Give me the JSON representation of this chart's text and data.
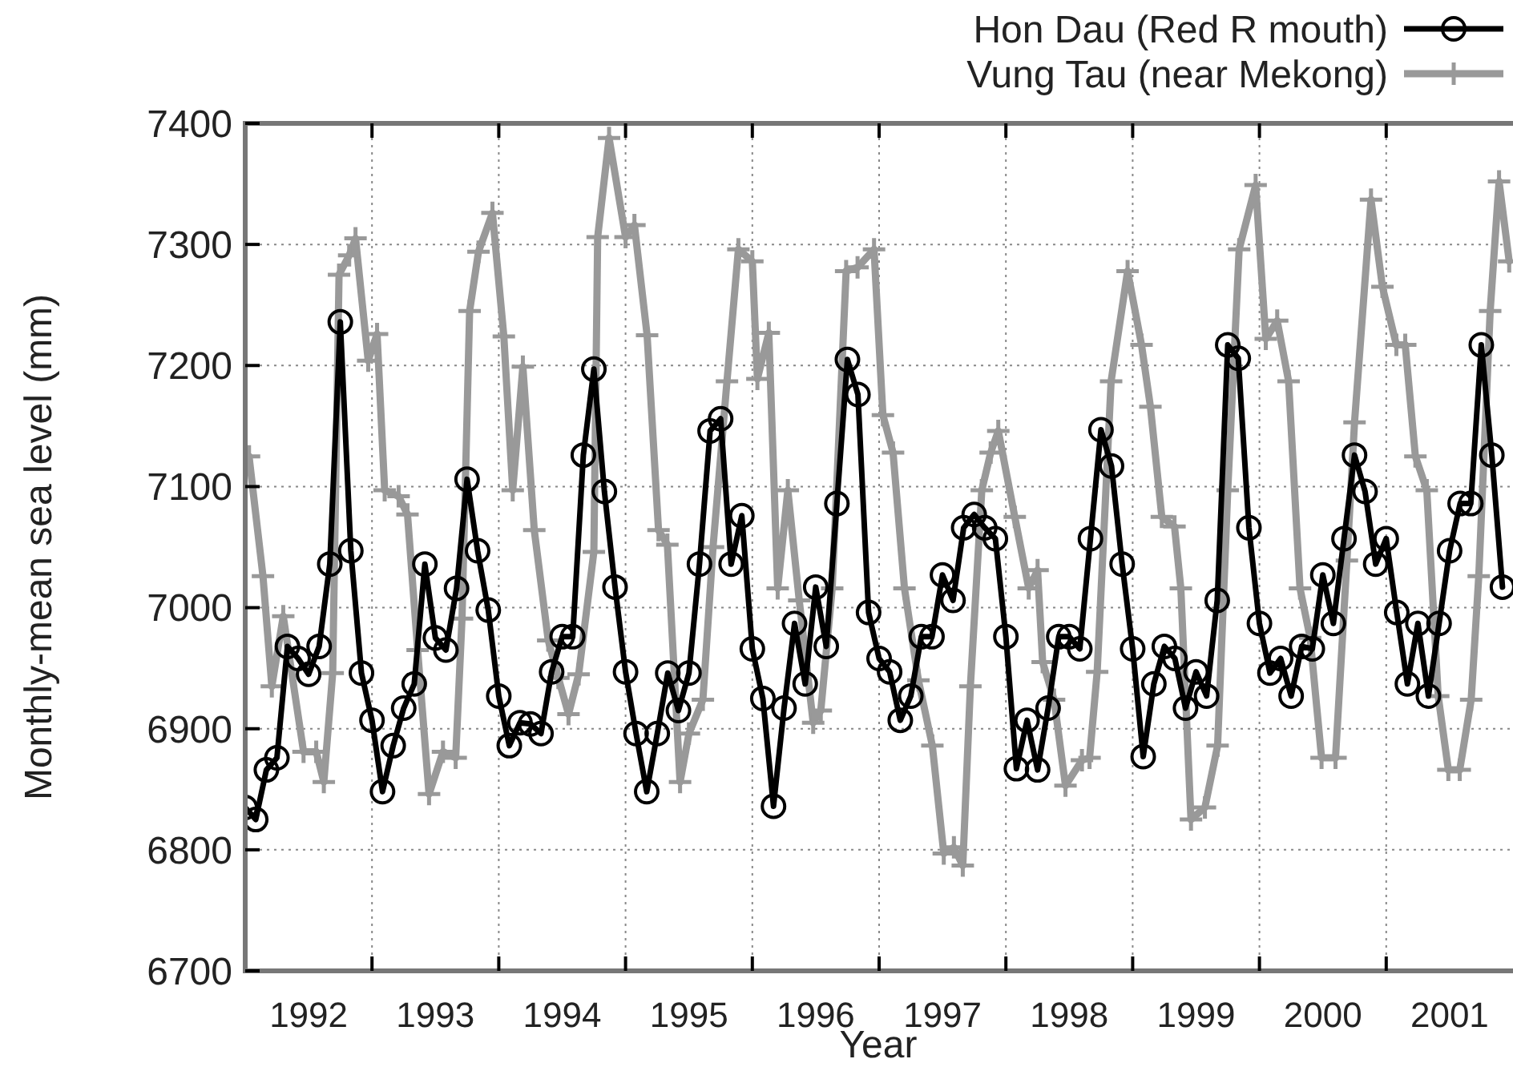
{
  "chart_data": {
    "type": "line",
    "xlabel": "Year",
    "ylabel": "Monthly-mean sea level (mm)",
    "xlim": [
      1992,
      2002
    ],
    "ylim": [
      6700,
      7400
    ],
    "xticks": [
      {
        "value": 1992.5,
        "label": "1992"
      },
      {
        "value": 1993,
        "label": null
      },
      {
        "value": 1993.5,
        "label": "1993"
      },
      {
        "value": 1994,
        "label": null
      },
      {
        "value": 1994.5,
        "label": "1994"
      },
      {
        "value": 1995,
        "label": null
      },
      {
        "value": 1995.5,
        "label": "1995"
      },
      {
        "value": 1996,
        "label": null
      },
      {
        "value": 1996.5,
        "label": "1996"
      },
      {
        "value": 1997,
        "label": null
      },
      {
        "value": 1997.5,
        "label": "1997"
      },
      {
        "value": 1998,
        "label": null
      },
      {
        "value": 1998.5,
        "label": "1998"
      },
      {
        "value": 1999,
        "label": null
      },
      {
        "value": 1999.5,
        "label": "1999"
      },
      {
        "value": 2000,
        "label": null
      },
      {
        "value": 2000.5,
        "label": "2000"
      },
      {
        "value": 2001,
        "label": null
      },
      {
        "value": 2001.5,
        "label": "2001"
      }
    ],
    "yticks": [
      6700,
      6800,
      6900,
      7000,
      7100,
      7200,
      7300,
      7400
    ],
    "grid": true,
    "legend": "top right",
    "line_style": "solid",
    "series": [
      {
        "name": "Hon Dau  (Red R mouth)",
        "color": "#000000",
        "marker": "circle",
        "x": [
          1992.0,
          1992.083,
          1992.167,
          1992.25,
          1992.333,
          1992.417,
          1992.5,
          1992.583,
          1992.667,
          1992.75,
          1992.833,
          1992.917,
          1993.0,
          1993.083,
          1993.167,
          1993.25,
          1993.333,
          1993.417,
          1993.5,
          1993.583,
          1993.667,
          1993.75,
          1993.833,
          1993.917,
          1994.0,
          1994.083,
          1994.167,
          1994.25,
          1994.333,
          1994.417,
          1994.5,
          1994.583,
          1994.667,
          1994.75,
          1994.833,
          1994.917,
          1995.0,
          1995.083,
          1995.167,
          1995.25,
          1995.333,
          1995.417,
          1995.5,
          1995.583,
          1995.667,
          1995.75,
          1995.833,
          1995.917,
          1996.0,
          1996.083,
          1996.167,
          1996.25,
          1996.333,
          1996.417,
          1996.5,
          1996.583,
          1996.667,
          1996.75,
          1996.833,
          1996.917,
          1997.0,
          1997.083,
          1997.167,
          1997.25,
          1997.333,
          1997.417,
          1997.5,
          1997.583,
          1997.667,
          1997.75,
          1997.833,
          1997.917,
          1998.0,
          1998.083,
          1998.167,
          1998.25,
          1998.333,
          1998.417,
          1998.5,
          1998.583,
          1998.667,
          1998.75,
          1998.833,
          1998.917,
          1999.0,
          1999.083,
          1999.167,
          1999.25,
          1999.333,
          1999.417,
          1999.5,
          1999.583,
          1999.667,
          1999.75,
          1999.833,
          1999.917,
          2000.0,
          2000.083,
          2000.167,
          2000.25,
          2000.333,
          2000.417,
          2000.5,
          2000.583,
          2000.667,
          2000.75,
          2000.833,
          2000.917,
          2001.0,
          2001.083,
          2001.167,
          2001.25,
          2001.333,
          2001.417,
          2001.5,
          2001.583,
          2001.667,
          2001.75,
          2001.833,
          2001.917
        ],
        "values": [
          6835,
          6825,
          6866,
          6876,
          6968,
          6958,
          6945,
          6968,
          7036,
          7236,
          7047,
          6946,
          6907,
          6848,
          6886,
          6917,
          6937,
          7036,
          6975,
          6965,
          7016,
          7106,
          7047,
          6998,
          6927,
          6886,
          6905,
          6904,
          6896,
          6947,
          6976,
          6976,
          7126,
          7197,
          7096,
          7017,
          6947,
          6896,
          6848,
          6896,
          6946,
          6915,
          6946,
          7036,
          7146,
          7156,
          7036,
          7076,
          6966,
          6925,
          6836,
          6917,
          6987,
          6937,
          7017,
          6968,
          7086,
          7205,
          7176,
          6996,
          6958,
          6947,
          6907,
          6927,
          6976,
          6976,
          7027,
          7006,
          7066,
          7077,
          7066,
          7057,
          6976,
          6867,
          6907,
          6866,
          6917,
          6976,
          6976,
          6966,
          7057,
          7147,
          7117,
          7036,
          6966,
          6877,
          6937,
          6968,
          6958,
          6917,
          6947,
          6927,
          7006,
          7217,
          7206,
          7066,
          6987,
          6946,
          6958,
          6927,
          6968,
          6966,
          7027,
          6987,
          7057,
          7126,
          7096,
          7036,
          7057,
          6996,
          6937,
          6987,
          6927,
          6987,
          7047,
          7086,
          7086,
          7217,
          7126,
          7017
        ]
      },
      {
        "name": "Vung Tau (near Mekong)",
        "color": "#999999",
        "marker": "cross",
        "x": [
          1992.03,
          1992.14,
          1992.21,
          1992.3,
          1992.46,
          1992.56,
          1992.62,
          1992.69,
          1992.74,
          1992.82,
          1992.87,
          1992.97,
          1993.04,
          1993.1,
          1993.21,
          1993.28,
          1993.36,
          1993.45,
          1993.56,
          1993.66,
          1993.71,
          1993.77,
          1993.84,
          1993.95,
          1994.04,
          1994.11,
          1994.19,
          1994.28,
          1994.39,
          1994.47,
          1994.55,
          1994.63,
          1994.75,
          1994.78,
          1994.87,
          1995.0,
          1995.07,
          1995.17,
          1995.26,
          1995.33,
          1995.43,
          1995.5,
          1995.61,
          1995.69,
          1995.8,
          1995.89,
          1996.0,
          1996.04,
          1996.13,
          1996.2,
          1996.28,
          1996.37,
          1996.48,
          1996.54,
          1996.63,
          1996.74,
          1996.83,
          1996.96,
          1997.03,
          1997.11,
          1997.2,
          1997.31,
          1997.42,
          1997.51,
          1997.59,
          1997.66,
          1997.72,
          1997.81,
          1997.88,
          1997.94,
          1998.07,
          1998.18,
          1998.25,
          1998.29,
          1998.38,
          1998.47,
          1998.6,
          1998.66,
          1998.72,
          1998.83,
          1998.96,
          1999.07,
          1999.14,
          1999.23,
          1999.33,
          1999.38,
          1999.46,
          1999.57,
          1999.67,
          1999.75,
          1999.84,
          1999.97,
          2000.05,
          2000.14,
          2000.23,
          2000.32,
          2000.4,
          2000.49,
          2000.6,
          2000.69,
          2000.75,
          2000.88,
          2000.97,
          2001.08,
          2001.15,
          2001.23,
          2001.32,
          2001.41,
          2001.49,
          2001.58,
          2001.67,
          2001.73,
          2001.82,
          2001.89,
          2001.97
        ],
        "values": [
          7125,
          7026,
          6935,
          6993,
          6881,
          6881,
          6856,
          6946,
          7275,
          7291,
          7305,
          7204,
          7226,
          7097,
          7092,
          7077,
          6965,
          6846,
          6881,
          6876,
          6991,
          7245,
          7294,
          7326,
          7224,
          7097,
          7199,
          7064,
          6973,
          6942,
          6912,
          6945,
          7046,
          7306,
          7388,
          7306,
          7316,
          7225,
          7064,
          7052,
          6856,
          6896,
          6924,
          7050,
          7187,
          7296,
          7286,
          7189,
          7227,
          7016,
          7097,
          7006,
          6905,
          6915,
          7016,
          7278,
          7281,
          7296,
          7159,
          7128,
          7016,
          6940,
          6886,
          6797,
          6802,
          6787,
          6935,
          7097,
          7128,
          7146,
          7075,
          7016,
          7031,
          6955,
          6924,
          6853,
          6874,
          6876,
          6947,
          7187,
          7278,
          7217,
          7166,
          7075,
          7067,
          7016,
          6825,
          6835,
          6886,
          7097,
          7296,
          7349,
          7222,
          7237,
          7187,
          7016,
          6975,
          6876,
          6876,
          7039,
          7153,
          7337,
          7265,
          7217,
          7217,
          7125,
          7097,
          6927,
          6866,
          6866,
          6924,
          7026,
          7245,
          7352,
          7286
        ]
      }
    ]
  }
}
